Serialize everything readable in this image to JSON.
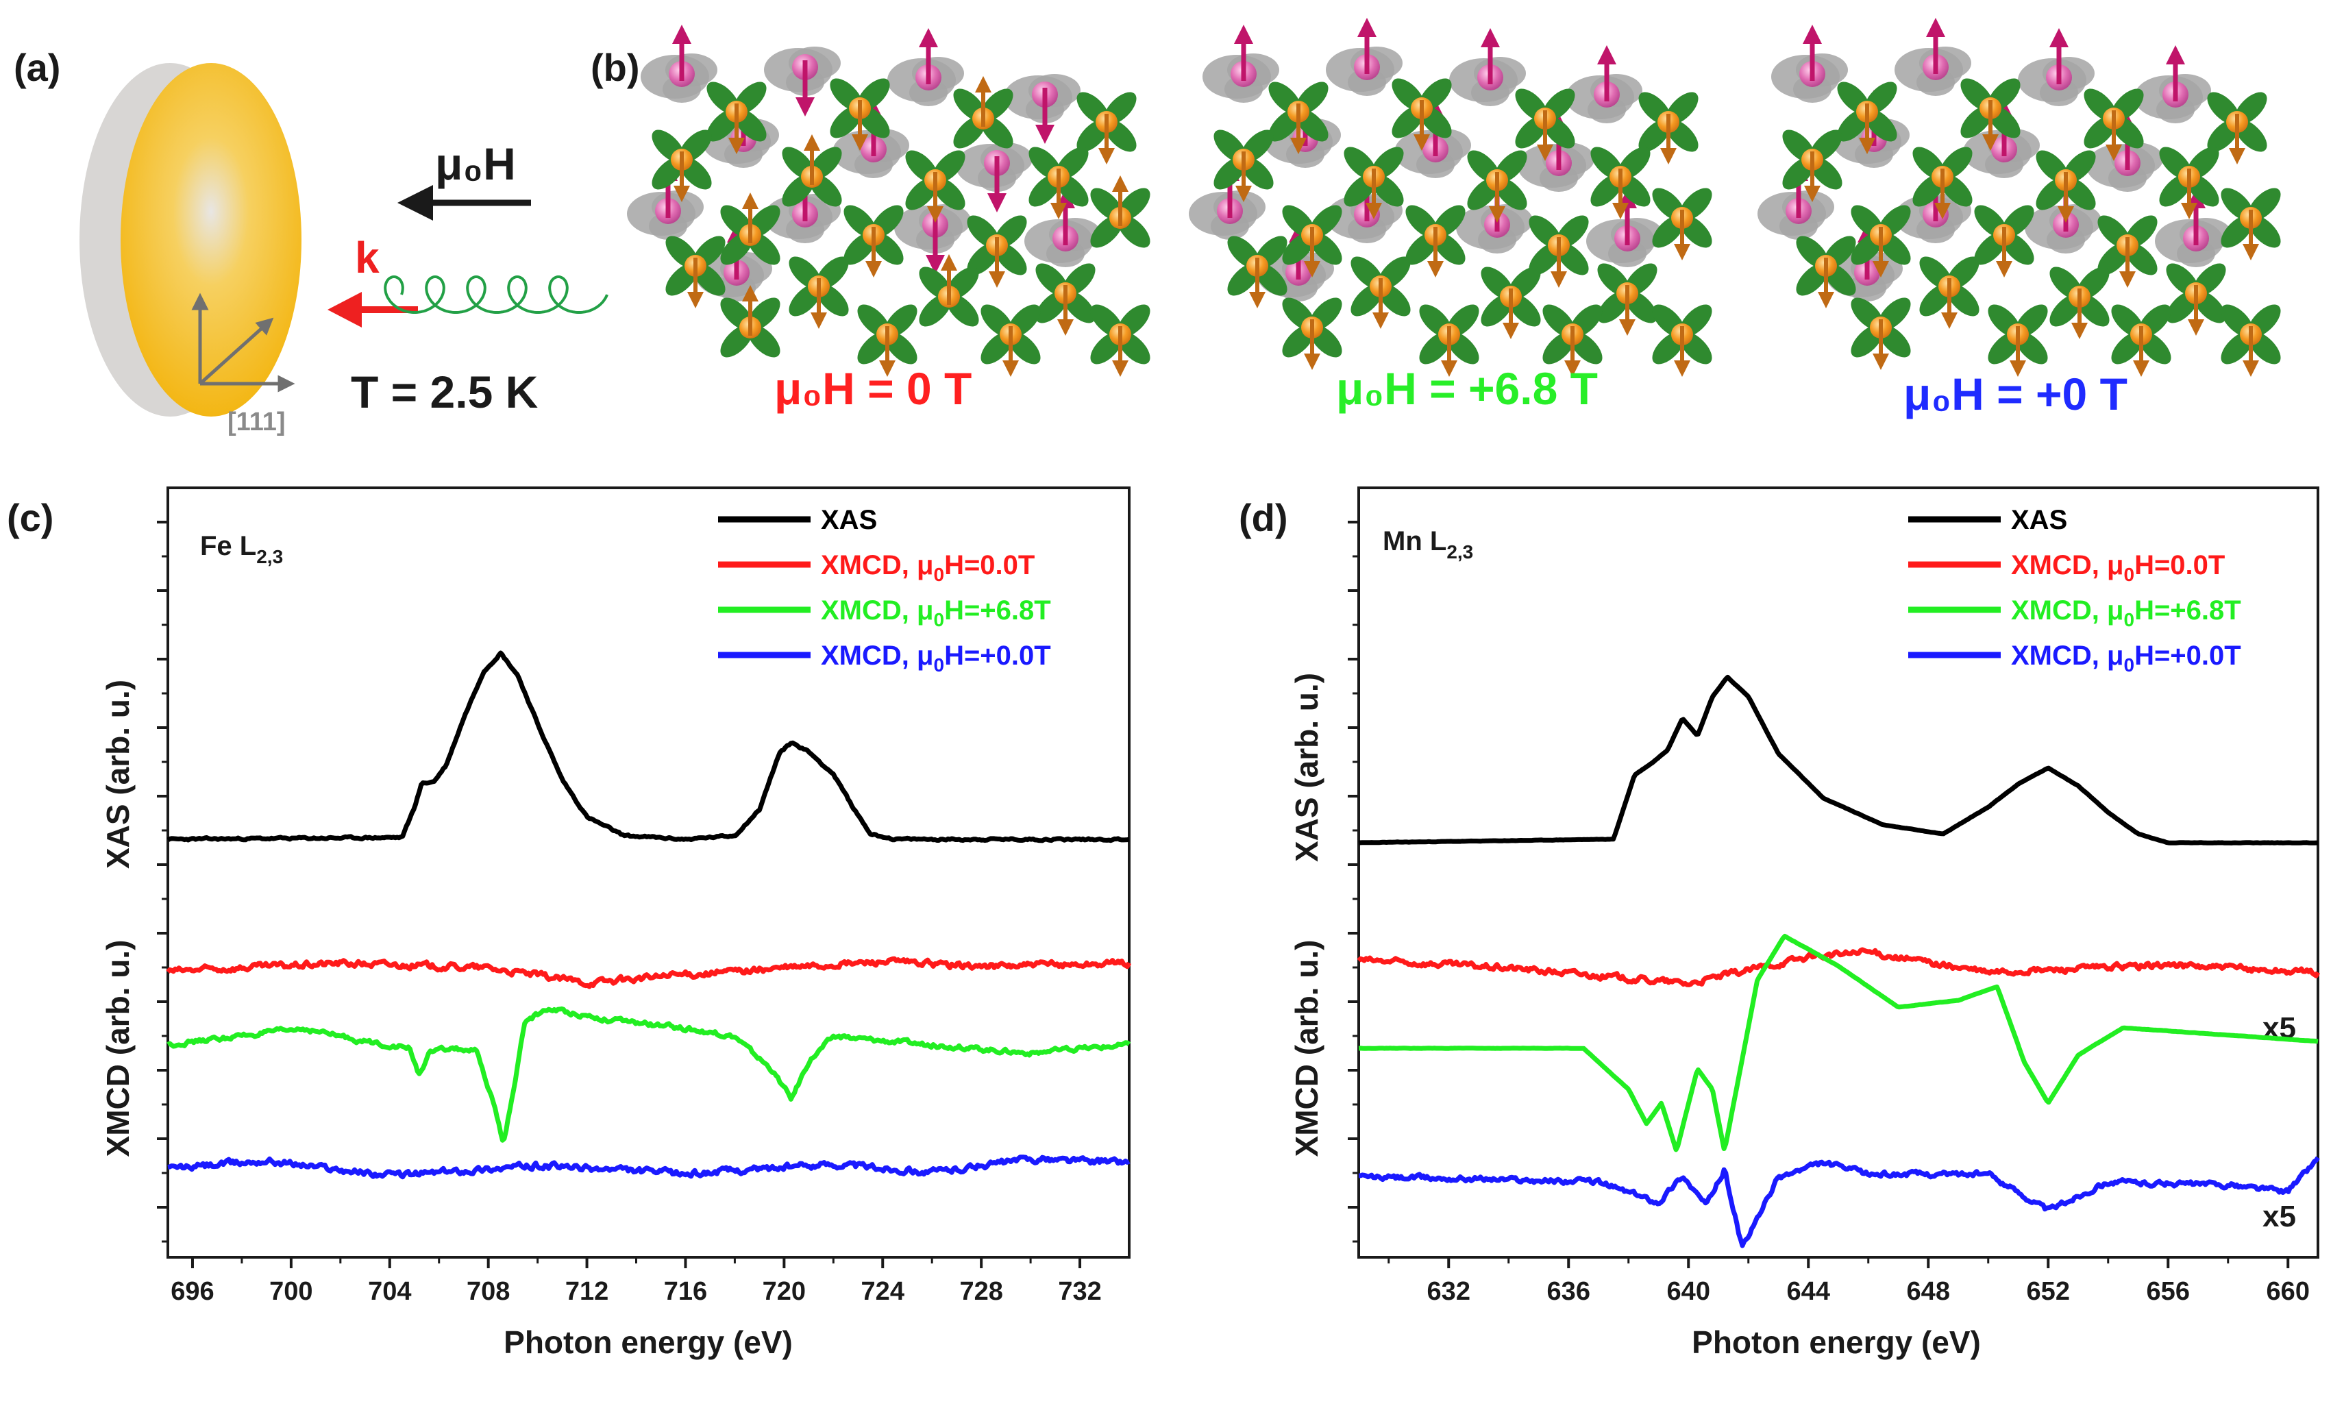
{
  "panels": {
    "a": {
      "label": "(a)",
      "field_label": "μ₀H",
      "k_label": "k",
      "temperature": "T = 2.5 K",
      "axis_label": "[111]"
    },
    "b": {
      "label": "(b)",
      "states": [
        {
          "text": "μ₀H = 0 T",
          "color": "#ff2020"
        },
        {
          "text": "μ₀H = +6.8 T",
          "color": "#28ee28"
        },
        {
          "text": "μ₀H = +0 T",
          "color": "#1f2bff"
        }
      ]
    }
  },
  "colors": {
    "xas": "#000000",
    "xmcd_0": "#ff1a1a",
    "xmcd_68": "#22ee22",
    "xmcd_p0": "#1a1aff",
    "gold": "#f7c21f",
    "grey_disc": "#d8d6d4",
    "magenta_spin": "#c0146a",
    "orange_spin": "#c06a14",
    "green_petal": "#2f8a2f",
    "grey_petal": "#a4a4a4"
  },
  "chart_data": [
    {
      "panel": "(c)",
      "type": "line",
      "element": "Fe L2,3",
      "element_main": "Fe L",
      "element_sub": "2,3",
      "xlabel": "Photon energy (eV)",
      "ylabel_top": "XAS (arb. u.)",
      "ylabel_bottom": "XMCD (arb. u.)",
      "xlim": [
        695,
        734
      ],
      "xticks": [
        696,
        700,
        704,
        708,
        712,
        716,
        720,
        724,
        728,
        732
      ],
      "legend": [
        {
          "main": "XAS",
          "key": "xas"
        },
        {
          "main": "XMCD, μ",
          "sub": "0",
          "tail": "H=0.0T",
          "key": "xmcd_0"
        },
        {
          "main": "XMCD, μ",
          "sub": "0",
          "tail": "H=+6.8T",
          "key": "xmcd_68"
        },
        {
          "main": "XMCD, μ",
          "sub": "0",
          "tail": "H=+0.0T",
          "key": "xmcd_p0"
        }
      ],
      "series": [
        {
          "name": "XAS",
          "key": "xas",
          "x": [
            695,
            704.5,
            705.0,
            705.3,
            705.8,
            706.3,
            707.0,
            707.8,
            708.5,
            709.2,
            710.0,
            711.0,
            712.0,
            713.5,
            716.0,
            718.0,
            719.0,
            719.8,
            720.3,
            721.0,
            722.0,
            722.8,
            723.5,
            724.5,
            734
          ],
          "y": [
            0.0,
            0.01,
            0.17,
            0.3,
            0.31,
            0.4,
            0.65,
            0.9,
            1.0,
            0.88,
            0.62,
            0.32,
            0.12,
            0.02,
            0.0,
            0.02,
            0.16,
            0.46,
            0.52,
            0.47,
            0.35,
            0.17,
            0.03,
            0.0,
            0.0
          ]
        },
        {
          "name": "XMCD, μ0H=0.0T",
          "key": "xmcd_0",
          "x": [
            695,
            702,
            708,
            712,
            716,
            720,
            724,
            728,
            734
          ],
          "y": [
            -0.04,
            0.01,
            -0.02,
            -0.11,
            -0.06,
            -0.02,
            0.02,
            -0.01,
            0.01
          ]
        },
        {
          "name": "XMCD, μ0H=+6.8T",
          "key": "xmcd_68",
          "x": [
            695,
            700.5,
            703,
            704.8,
            705.2,
            705.6,
            706.5,
            707.5,
            708.2,
            708.6,
            709.0,
            709.5,
            710.5,
            713,
            716,
            718,
            719.5,
            720.3,
            721.0,
            722,
            726,
            730,
            734
          ],
          "y": [
            0.0,
            0.1,
            0.02,
            -0.02,
            -0.18,
            -0.05,
            -0.02,
            -0.04,
            -0.35,
            -0.6,
            -0.3,
            0.15,
            0.22,
            0.15,
            0.1,
            0.05,
            -0.15,
            -0.33,
            -0.1,
            0.05,
            0.0,
            -0.05,
            0.0
          ]
        },
        {
          "name": "XMCD, μ0H=+0.0T",
          "key": "xmcd_p0",
          "x": [
            695,
            699,
            704,
            710,
            716,
            722,
            726,
            730,
            734
          ],
          "y": [
            0.0,
            0.05,
            -0.04,
            0.02,
            -0.03,
            0.03,
            -0.02,
            0.06,
            0.04
          ]
        }
      ]
    },
    {
      "panel": "(d)",
      "type": "line",
      "element": "Mn L2,3",
      "element_main": "Mn L",
      "element_sub": "2,3",
      "xlabel": "Photon energy (eV)",
      "ylabel_top": "XAS (arb. u.)",
      "ylabel_bottom": "XMCD (arb. u.)",
      "xlim": [
        629,
        661
      ],
      "xticks": [
        632,
        636,
        640,
        644,
        648,
        652,
        656,
        660
      ],
      "scale_labels": [
        "x5",
        "x5"
      ],
      "legend": [
        {
          "main": "XAS",
          "key": "xas"
        },
        {
          "main": "XMCD, μ",
          "sub": "0",
          "tail": "H=0.0T",
          "key": "xmcd_0"
        },
        {
          "main": "XMCD, μ",
          "sub": "0",
          "tail": "H=+6.8T",
          "key": "xmcd_68"
        },
        {
          "main": "XMCD, μ",
          "sub": "0",
          "tail": "H=+0.0T",
          "key": "xmcd_p0"
        }
      ],
      "series": [
        {
          "name": "XAS",
          "key": "xas",
          "x": [
            629,
            637.5,
            638.2,
            638.8,
            639.3,
            639.8,
            640.3,
            640.8,
            641.3,
            642.0,
            643.0,
            644.5,
            646.5,
            648.5,
            650.0,
            651.0,
            652.0,
            653.0,
            654.0,
            655.0,
            656.0,
            661
          ],
          "y": [
            0.0,
            0.02,
            0.38,
            0.45,
            0.52,
            0.7,
            0.6,
            0.82,
            0.93,
            0.82,
            0.5,
            0.25,
            0.1,
            0.05,
            0.2,
            0.33,
            0.42,
            0.32,
            0.17,
            0.05,
            0.0,
            0.0
          ]
        },
        {
          "name": "XMCD, μ0H=0.0T",
          "key": "xmcd_0",
          "x": [
            629,
            634,
            640,
            644,
            646,
            650,
            656,
            661
          ],
          "y": [
            0.03,
            -0.02,
            -0.12,
            0.05,
            0.08,
            -0.05,
            0.0,
            -0.05
          ]
        },
        {
          "name": "XMCD, μ0H=+6.8T",
          "key": "xmcd_68",
          "x": [
            629,
            636.5,
            638.0,
            638.6,
            639.1,
            639.6,
            640.3,
            640.8,
            641.2,
            641.6,
            642.3,
            643.2,
            645,
            647,
            649,
            650.3,
            651.2,
            652.0,
            653.0,
            654.5,
            661
          ],
          "y": [
            0.0,
            0.0,
            -0.3,
            -0.55,
            -0.4,
            -0.75,
            -0.15,
            -0.3,
            -0.75,
            -0.3,
            0.5,
            0.82,
            0.6,
            0.3,
            0.35,
            0.45,
            -0.1,
            -0.4,
            -0.05,
            0.15,
            0.05
          ]
        },
        {
          "name": "XMCD, μ0H=+0.0T",
          "key": "xmcd_p0",
          "x": [
            629,
            633,
            637,
            639.0,
            639.8,
            640.6,
            641.2,
            641.8,
            643,
            644.5,
            646,
            650,
            652,
            654,
            658,
            660,
            661
          ],
          "y": [
            0.03,
            0.02,
            0.0,
            -0.13,
            0.04,
            -0.15,
            0.08,
            -0.42,
            0.03,
            0.12,
            0.05,
            0.05,
            -0.18,
            0.0,
            -0.02,
            -0.06,
            0.15
          ]
        }
      ]
    }
  ]
}
